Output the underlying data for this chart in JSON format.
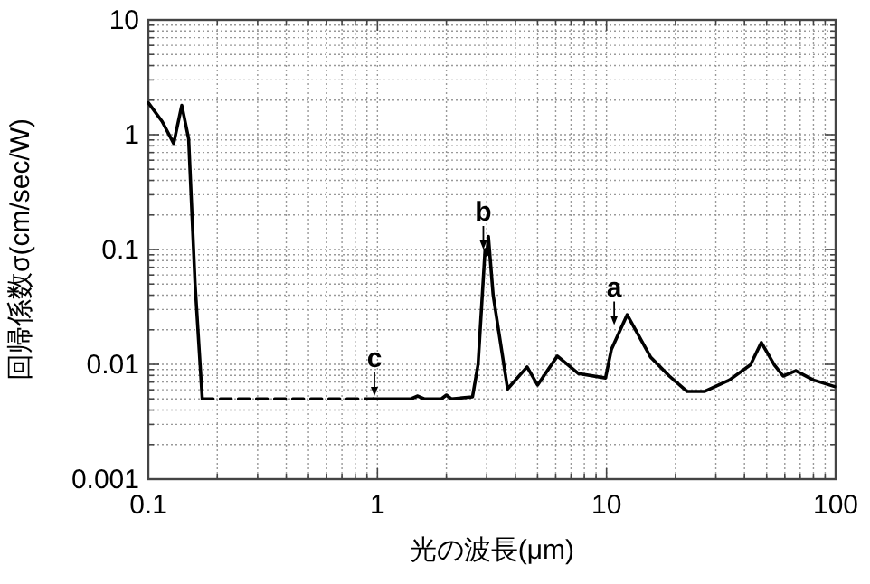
{
  "chart_data": {
    "type": "line",
    "xlabel": "光の波長(μm)",
    "ylabel": "回帰係数σ(cm/sec/W)",
    "log": "xy",
    "xlim": [
      0.1,
      100
    ],
    "ylim": [
      0.001,
      10
    ],
    "xticks": [
      0.1,
      1,
      10,
      100
    ],
    "yticks": [
      0.001,
      0.01,
      0.1,
      1,
      10
    ],
    "grid": true,
    "marker": "none",
    "series": [
      {
        "color": "#000000",
        "line_style": "solid",
        "x": [
          0.1,
          0.115,
          0.129,
          0.14,
          0.15,
          0.16,
          0.172
        ],
        "values": [
          1.9,
          1.3,
          0.84,
          1.8,
          0.92,
          0.05,
          0.005
        ]
      },
      {
        "color": "#000000",
        "line_style": "dashed",
        "x": [
          0.172,
          0.96
        ],
        "values": [
          0.005,
          0.005
        ]
      },
      {
        "color": "#000000",
        "line_style": "solid",
        "x": [
          0.96,
          1.4,
          1.5,
          1.6,
          1.9,
          2.0,
          2.1,
          2.6,
          2.75,
          2.95,
          3.0,
          3.05,
          3.2,
          3.7,
          4.5,
          5.0,
          6.1,
          7.55,
          9.9,
          10.5,
          12.3,
          15.6,
          18.8,
          22.5,
          26.7,
          34.4,
          42.5,
          47.4,
          54,
          59,
          67,
          80,
          99
        ],
        "values": [
          0.005,
          0.005,
          0.0053,
          0.005,
          0.005,
          0.0054,
          0.005,
          0.0052,
          0.01,
          0.1,
          0.09,
          0.13,
          0.04,
          0.0061,
          0.0095,
          0.0066,
          0.0118,
          0.0083,
          0.0076,
          0.0135,
          0.027,
          0.0115,
          0.0079,
          0.0058,
          0.0058,
          0.0073,
          0.0099,
          0.0155,
          0.0099,
          0.0079,
          0.0088,
          0.0073,
          0.0064
        ]
      }
    ],
    "annotations": [
      {
        "text": "a",
        "x": 10.8,
        "y": 0.022
      },
      {
        "text": "b",
        "x": 2.9,
        "y": 0.1
      },
      {
        "text": "c",
        "x": 0.97,
        "y": 0.0053
      }
    ]
  }
}
